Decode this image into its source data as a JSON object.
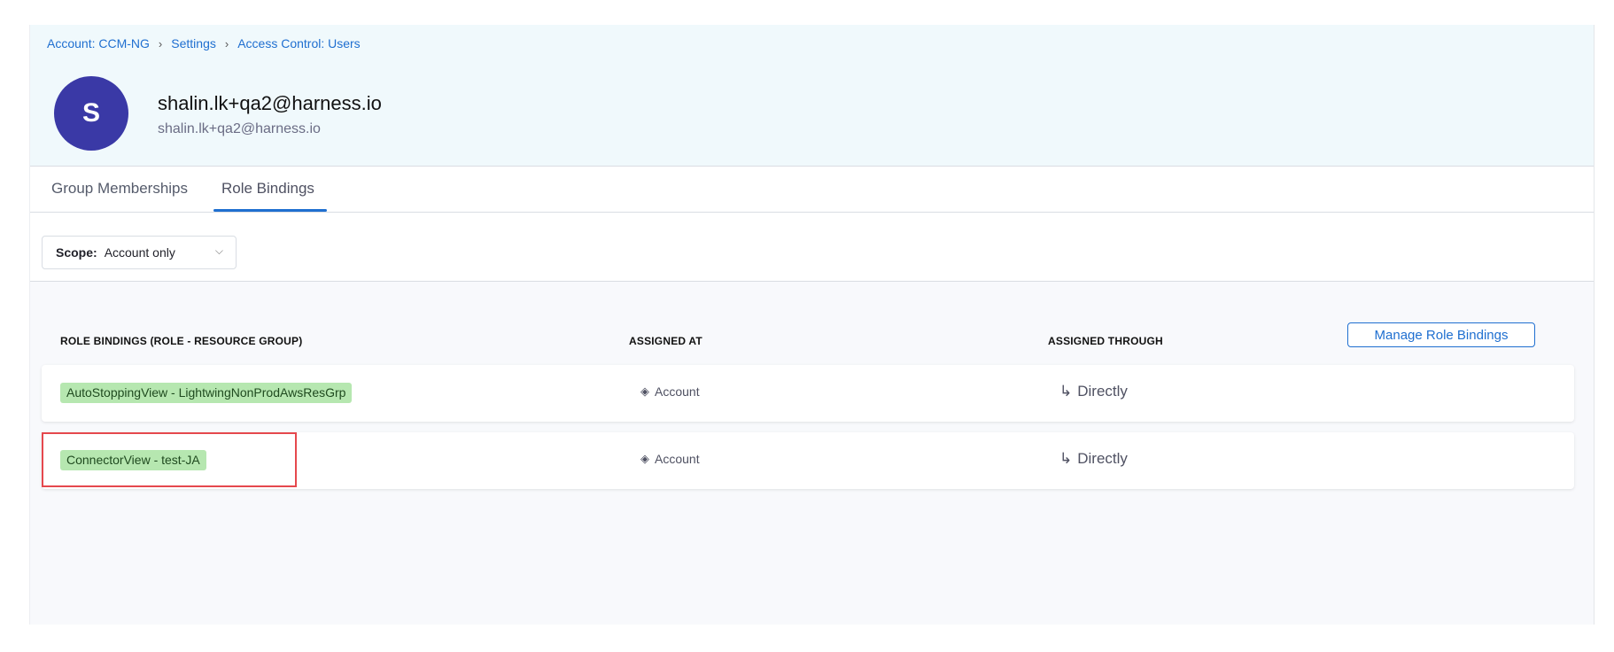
{
  "breadcrumb": [
    "Account: CCM-NG",
    "Settings",
    "Access Control: Users"
  ],
  "user": {
    "initial": "S",
    "name": "shalin.lk+qa2@harness.io",
    "email": "shalin.lk+qa2@harness.io"
  },
  "tabs": [
    {
      "label": "Group Memberships"
    },
    {
      "label": "Role Bindings",
      "active": true
    }
  ],
  "scope": {
    "label": "Scope:",
    "value": "Account only"
  },
  "table": {
    "headers": [
      "ROLE BINDINGS (ROLE - RESOURCE GROUP)",
      "ASSIGNED AT",
      "ASSIGNED THROUGH"
    ],
    "manage_button": "Manage Role Bindings",
    "rows": [
      {
        "binding": "AutoStoppingView - LightwingNonProdAwsResGrp",
        "assigned_at": "Account",
        "assigned_through": "Directly"
      },
      {
        "binding": "ConnectorView - test-JA",
        "assigned_at": "Account",
        "assigned_through": "Directly",
        "highlighted": true
      }
    ]
  },
  "colors": {
    "accent": "#1f6fd0",
    "avatar": "#3a39a6",
    "tag": "#b6e7b0",
    "highlight": "#e5484d"
  }
}
